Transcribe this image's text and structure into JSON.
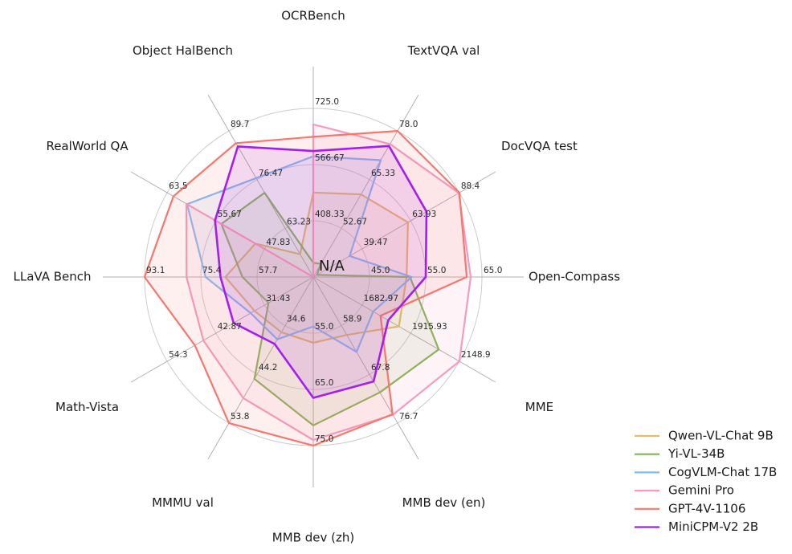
{
  "chart_data": {
    "type": "radar",
    "center_label": "N/A",
    "grid": {
      "ring_color": "#cccccc",
      "axis_color": "#b0b0b0",
      "rings": 3
    },
    "legend_position": "bottom-right",
    "axes": [
      {
        "label": "OCRBench",
        "min": 250,
        "max": 725,
        "tick_labels": [
          "408.33",
          "566.67",
          "725.0"
        ]
      },
      {
        "label": "TextVQA val",
        "min": 40,
        "max": 78,
        "tick_labels": [
          "52.67",
          "65.33",
          "78.0"
        ]
      },
      {
        "label": "DocVQA test",
        "min": 15,
        "max": 88.4,
        "tick_labels": [
          "39.47",
          "63.93",
          "88.4"
        ]
      },
      {
        "label": "Open-Compass",
        "min": 35,
        "max": 65,
        "tick_labels": [
          "45.0",
          "55.0",
          "65.0"
        ]
      },
      {
        "label": "MME",
        "min": 1450,
        "max": 2148.9,
        "tick_labels": [
          "1682.97",
          "1915.93",
          "2148.9"
        ]
      },
      {
        "label": "MMB dev (en)",
        "min": 50,
        "max": 76.7,
        "tick_labels": [
          "58.9",
          "67.8",
          "76.7"
        ]
      },
      {
        "label": "MMB dev (zh)",
        "min": 45,
        "max": 75,
        "tick_labels": [
          "55.0",
          "65.0",
          "75.0"
        ]
      },
      {
        "label": "MMMU val",
        "min": 25,
        "max": 53.8,
        "tick_labels": [
          "34.6",
          "44.2",
          "53.8"
        ]
      },
      {
        "label": "Math-Vista",
        "min": 20,
        "max": 54.3,
        "tick_labels": [
          "31.43",
          "42.87",
          "54.3"
        ]
      },
      {
        "label": "LLaVA Bench",
        "min": 40,
        "max": 93.1,
        "tick_labels": [
          "57.7",
          "75.4",
          "93.1"
        ]
      },
      {
        "label": "RealWorld QA",
        "min": 40,
        "max": 63.5,
        "tick_labels": [
          "47.83",
          "55.67",
          "63.5"
        ]
      },
      {
        "label": "Object HalBench",
        "min": 50,
        "max": 89.7,
        "tick_labels": [
          "63.23",
          "76.47",
          "89.7"
        ]
      }
    ],
    "series": [
      {
        "name": "Qwen-VL-Chat 9B",
        "color": "#e7bc66",
        "values": [
          488,
          61.5,
          62.6,
          51.6,
          1860.0,
          60.6,
          56.7,
          35.9,
          33.8,
          67.7,
          49.3,
          56.2
        ]
      },
      {
        "name": "Yi-VL-34B",
        "color": "#84b456",
        "values": [
          290,
          43.4,
          16.9,
          52.2,
          2050.2,
          71.1,
          71.4,
          45.1,
          30.5,
          62.3,
          54.8,
          72.9
        ]
      },
      {
        "name": "CogVLM-Chat 17B",
        "color": "#7fbcf5",
        "values": [
          590,
          70.4,
          33.3,
          52.5,
          1736.6,
          63.7,
          53.8,
          37.3,
          34.7,
          73.9,
          60.3,
          76.9
        ]
      },
      {
        "name": "Gemini Pro",
        "color": "#f79ac0",
        "values": [
          680,
          74.6,
          88.1,
          63.0,
          2148.9,
          75.2,
          74.0,
          48.9,
          45.8,
          79.9,
          60.4,
          null
        ]
      },
      {
        "name": "GPT-4V-1106",
        "color": "#f8766d",
        "values": [
          645,
          78.0,
          88.4,
          62.3,
          1771.5,
          75.1,
          75.0,
          53.8,
          47.8,
          93.1,
          62.5,
          86.4
        ]
      },
      {
        "name": "MiniCPM-V2 2B",
        "color": "#a21fef",
        "values": [
          605,
          74.1,
          71.9,
          55.0,
          1808.6,
          69.1,
          66.5,
          38.2,
          38.7,
          69.2,
          55.8,
          85.5
        ]
      }
    ]
  }
}
